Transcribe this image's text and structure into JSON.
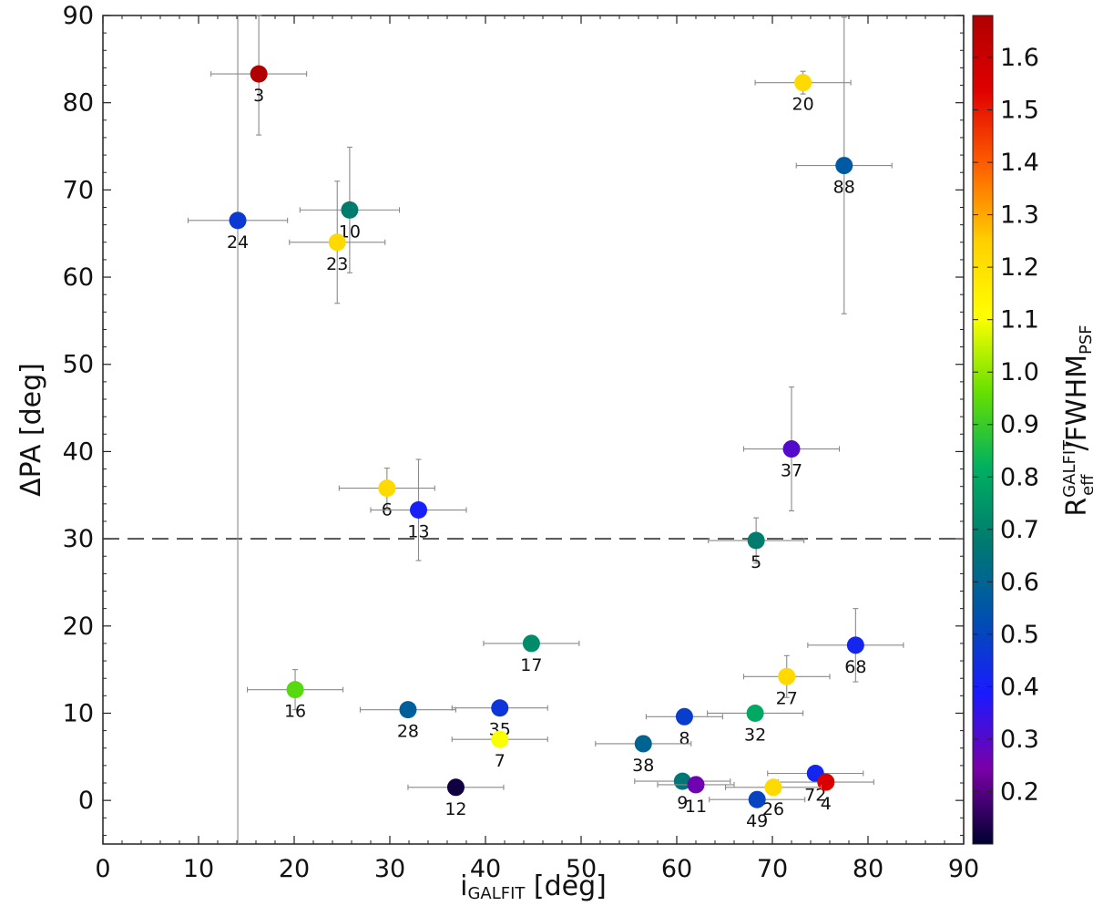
{
  "chart_data": {
    "type": "scatter",
    "xlabel": {
      "main": "i",
      "sub": "GALFIT",
      "unit": "[deg]"
    },
    "ylabel": {
      "main": "ΔPA",
      "unit": "[deg]"
    },
    "colorbar_label": {
      "main": "R",
      "sub": "eff",
      "sup": "GALFIT",
      "rest": "/FWHM",
      "rest_sub": "PSF"
    },
    "xlim": [
      0,
      90
    ],
    "ylim": [
      -5,
      90
    ],
    "xticks": [
      "0",
      "10",
      "20",
      "30",
      "40",
      "50",
      "60",
      "70",
      "80",
      "90"
    ],
    "yticks": [
      "0",
      "10",
      "20",
      "30",
      "40",
      "50",
      "60",
      "70",
      "80",
      "90"
    ],
    "colorbar": {
      "range": [
        0.1,
        1.68
      ],
      "ticks": [
        "0.2",
        "0.3",
        "0.4",
        "0.5",
        "0.6",
        "0.7",
        "0.8",
        "0.9",
        "1.0",
        "1.1",
        "1.2",
        "1.3",
        "1.4",
        "1.5",
        "1.6"
      ],
      "stops": [
        "#000030",
        "#7a00a8",
        "#1a1aff",
        "#0050b0",
        "#007a70",
        "#00b060",
        "#66e000",
        "#ffff00",
        "#ffd000",
        "#ff6000",
        "#e00000",
        "#b00000"
      ]
    },
    "reference_lines": [
      {
        "orientation": "horizontal",
        "y": 30,
        "style": "dashed"
      }
    ],
    "points": [
      {
        "id": "3",
        "x": 16.3,
        "y": 83.3,
        "c": 1.68,
        "xerr": 5.0,
        "yerr": [
          13.3,
          7.0
        ]
      },
      {
        "id": "20",
        "x": 73.2,
        "y": 82.3,
        "c": 1.22,
        "xerr": 5.0,
        "yerr": 1.3
      },
      {
        "id": "88",
        "x": 77.5,
        "y": 72.8,
        "c": 0.56,
        "xerr": 5.0,
        "yerr": [
          17.0,
          17.0
        ]
      },
      {
        "id": "10",
        "x": 25.8,
        "y": 67.7,
        "c": 0.68,
        "xerr": 5.2,
        "yerr": 7.2
      },
      {
        "id": "24",
        "x": 14.1,
        "y": 66.5,
        "c": 0.47,
        "xerr": 5.2,
        "yerr": 0
      },
      {
        "id": "23",
        "x": 24.5,
        "y": 64.0,
        "c": 1.22,
        "xerr": 5.0,
        "yerr": 7.0
      },
      {
        "id": "37",
        "x": 72.0,
        "y": 40.3,
        "c": 0.3,
        "xerr": 5.0,
        "yerr": 7.1
      },
      {
        "id": "6",
        "x": 29.7,
        "y": 35.8,
        "c": 1.22,
        "xerr": 5.0,
        "yerr": 2.3
      },
      {
        "id": "13",
        "x": 33.0,
        "y": 33.3,
        "c": 0.4,
        "xerr": 5.0,
        "yerr": 5.8
      },
      {
        "id": "5",
        "x": 68.3,
        "y": 29.8,
        "c": 0.68,
        "xerr": 5.0,
        "yerr": 2.6
      },
      {
        "id": "17",
        "x": 44.8,
        "y": 18.0,
        "c": 0.72,
        "xerr": 5.0,
        "yerr": 0
      },
      {
        "id": "68",
        "x": 78.7,
        "y": 17.8,
        "c": 0.42,
        "xerr": 5.0,
        "yerr": 4.2
      },
      {
        "id": "27",
        "x": 71.5,
        "y": 14.2,
        "c": 1.22,
        "xerr": 4.5,
        "yerr": 2.4
      },
      {
        "id": "16",
        "x": 20.1,
        "y": 12.7,
        "c": 0.94,
        "xerr": 5.0,
        "yerr": 2.3
      },
      {
        "id": "35",
        "x": 41.5,
        "y": 10.6,
        "c": 0.46,
        "xerr": 5.0,
        "yerr": 0
      },
      {
        "id": "28",
        "x": 31.9,
        "y": 10.4,
        "c": 0.58,
        "xerr": 5.0,
        "yerr": 0
      },
      {
        "id": "32",
        "x": 68.2,
        "y": 10.0,
        "c": 0.8,
        "xerr": 5.0,
        "yerr": 0
      },
      {
        "id": "8",
        "x": 60.8,
        "y": 9.6,
        "c": 0.48,
        "xerr": 4.0,
        "yerr": 0
      },
      {
        "id": "7",
        "x": 41.5,
        "y": 7.0,
        "c": 1.1,
        "xerr": 5.0,
        "yerr": 0
      },
      {
        "id": "38",
        "x": 56.5,
        "y": 6.5,
        "c": 0.6,
        "xerr": 5.0,
        "yerr": 0
      },
      {
        "id": "72",
        "x": 74.5,
        "y": 3.1,
        "c": 0.42,
        "xerr": 5.0,
        "yerr": 0
      },
      {
        "id": "4",
        "x": 75.6,
        "y": 2.1,
        "c": 1.55,
        "xerr": 5.0,
        "yerr": 0
      },
      {
        "id": "9",
        "x": 60.6,
        "y": 2.2,
        "c": 0.66,
        "xerr": 5.0,
        "yerr": 0
      },
      {
        "id": "11",
        "x": 62.0,
        "y": 1.8,
        "c": 0.26,
        "xerr": 4.0,
        "yerr": 0
      },
      {
        "id": "26",
        "x": 70.1,
        "y": 1.5,
        "c": 1.22,
        "xerr": 5.0,
        "yerr": 0
      },
      {
        "id": "12",
        "x": 36.9,
        "y": 1.5,
        "c": 0.12,
        "xerr": 5.0,
        "yerr": 0
      },
      {
        "id": "49",
        "x": 68.4,
        "y": 0.1,
        "c": 0.5,
        "xerr": 5.0,
        "yerr": 0
      }
    ]
  }
}
